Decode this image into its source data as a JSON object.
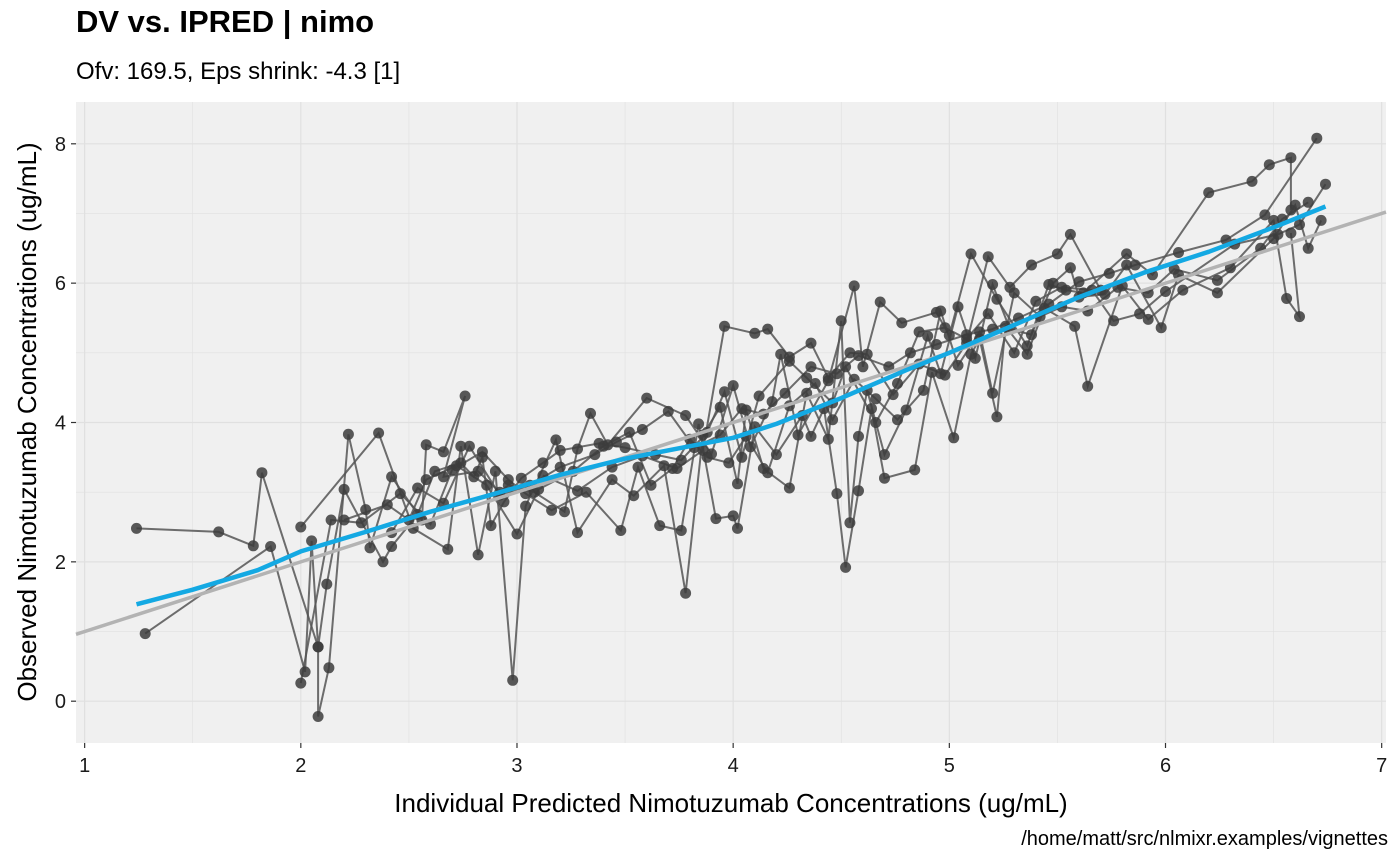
{
  "title": "DV vs. IPRED | nimo",
  "subtitle": "Ofv: 169.5, Eps shrink: -4.3 [1]",
  "caption": "/home/matt/src/nlmixr.examples/vignettes",
  "chart_data": {
    "type": "scatter",
    "title": "DV vs. IPRED | nimo",
    "subtitle": "Ofv: 169.5, Eps shrink: -4.3 [1]",
    "xlabel": "Individual Predicted Nimotuzumab Concentrations (ug/mL)",
    "ylabel": "Observed Nimotuzumab Concentrations (ug/mL)",
    "xlim": [
      0.96,
      7.02
    ],
    "ylim": [
      -0.6,
      8.6
    ],
    "x_ticks": [
      "1",
      "2",
      "3",
      "4",
      "5",
      "6",
      "7"
    ],
    "y_ticks": [
      "0",
      "2",
      "4",
      "6",
      "8"
    ],
    "grid": true,
    "colors": {
      "panel": "#f0f0f0",
      "grid": "#e0e0e0",
      "points": "#3c3c3c",
      "lines": "#555555",
      "smooth": "#14a9e3",
      "identity": "#b3b3b3"
    },
    "identity_line": {
      "slope": 1,
      "intercept": 0
    },
    "smooth_line": [
      [
        1.24,
        1.39
      ],
      [
        1.5,
        1.6
      ],
      [
        1.8,
        1.88
      ],
      [
        2.0,
        2.15
      ],
      [
        2.3,
        2.43
      ],
      [
        2.6,
        2.72
      ],
      [
        2.9,
        2.98
      ],
      [
        3.2,
        3.25
      ],
      [
        3.5,
        3.48
      ],
      [
        3.8,
        3.66
      ],
      [
        4.0,
        3.78
      ],
      [
        4.2,
        3.98
      ],
      [
        4.5,
        4.35
      ],
      [
        4.8,
        4.75
      ],
      [
        5.0,
        5.0
      ],
      [
        5.3,
        5.4
      ],
      [
        5.6,
        5.8
      ],
      [
        5.9,
        6.15
      ],
      [
        6.2,
        6.45
      ],
      [
        6.5,
        6.8
      ],
      [
        6.74,
        7.1
      ]
    ],
    "series": [
      {
        "points": [
          [
            1.24,
            2.48
          ],
          [
            1.62,
            2.43
          ],
          [
            1.78,
            2.23
          ],
          [
            1.82,
            3.28
          ],
          [
            2.08,
            0.78
          ],
          [
            2.08,
            -0.22
          ],
          [
            2.13,
            0.48
          ],
          [
            2.22,
            3.83
          ],
          [
            2.3,
            2.75
          ],
          [
            2.32,
            2.2
          ],
          [
            2.42,
            3.22
          ],
          [
            2.56,
            2.6
          ],
          [
            2.58,
            3.68
          ],
          [
            2.66,
            3.58
          ],
          [
            2.76,
            4.38
          ],
          [
            2.66,
            3.22
          ],
          [
            2.82,
            3.3
          ],
          [
            2.92,
            3.0
          ],
          [
            2.96,
            3.1
          ],
          [
            3.08,
            3.0
          ],
          [
            3.22,
            2.72
          ],
          [
            3.28,
            3.62
          ],
          [
            3.34,
            4.13
          ],
          [
            3.42,
            3.68
          ],
          [
            3.6,
            4.35
          ],
          [
            3.78,
            4.1
          ],
          [
            3.9,
            3.55
          ],
          [
            4.0,
            4.53
          ],
          [
            4.08,
            3.65
          ],
          [
            4.18,
            4.3
          ],
          [
            4.22,
            4.98
          ],
          [
            4.3,
            3.82
          ],
          [
            4.44,
            4.6
          ],
          [
            4.56,
            5.96
          ],
          [
            4.6,
            4.8
          ],
          [
            4.68,
            5.73
          ],
          [
            4.78,
            5.43
          ],
          [
            4.94,
            5.58
          ],
          [
            5.0,
            5.25
          ],
          [
            5.1,
            6.42
          ],
          [
            5.22,
            5.77
          ],
          [
            5.36,
            5.1
          ],
          [
            5.46,
            5.98
          ],
          [
            5.54,
            5.9
          ],
          [
            5.62,
            5.86
          ],
          [
            5.82,
            6.42
          ],
          [
            5.94,
            6.12
          ],
          [
            6.2,
            7.3
          ],
          [
            6.4,
            7.46
          ],
          [
            6.48,
            7.7
          ],
          [
            6.58,
            7.8
          ],
          [
            6.58,
            7.05
          ]
        ]
      },
      {
        "points": [
          [
            1.28,
            0.97
          ],
          [
            1.86,
            2.22
          ],
          [
            2.02,
            0.42
          ],
          [
            2.05,
            2.3
          ],
          [
            2.08,
            0.78
          ],
          [
            2.12,
            1.68
          ],
          [
            2.2,
            3.04
          ],
          [
            2.38,
            2.0
          ],
          [
            2.42,
            2.22
          ],
          [
            2.54,
            2.68
          ],
          [
            2.62,
            3.3
          ],
          [
            2.74,
            3.42
          ],
          [
            2.8,
            3.22
          ],
          [
            2.84,
            3.5
          ],
          [
            2.88,
            2.52
          ],
          [
            2.94,
            2.86
          ],
          [
            3.02,
            3.2
          ],
          [
            3.12,
            3.42
          ],
          [
            3.2,
            3.6
          ],
          [
            3.38,
            3.7
          ],
          [
            3.5,
            3.64
          ],
          [
            3.64,
            3.54
          ],
          [
            3.76,
            3.46
          ],
          [
            3.88,
            3.86
          ],
          [
            3.96,
            4.44
          ],
          [
            4.04,
            3.5
          ],
          [
            4.12,
            4.38
          ],
          [
            4.26,
            4.88
          ],
          [
            4.34,
            4.64
          ],
          [
            4.46,
            4.28
          ],
          [
            4.52,
            4.8
          ],
          [
            4.66,
            4.0
          ],
          [
            4.76,
            4.56
          ],
          [
            4.86,
            5.3
          ],
          [
            4.98,
            5.36
          ],
          [
            5.08,
            5.2
          ],
          [
            5.18,
            5.56
          ],
          [
            5.3,
            5.0
          ],
          [
            5.4,
            5.74
          ],
          [
            5.52,
            5.94
          ],
          [
            5.66,
            5.9
          ],
          [
            5.76,
            5.46
          ],
          [
            5.88,
            5.56
          ],
          [
            6.0,
            5.88
          ],
          [
            6.32,
            6.56
          ],
          [
            6.52,
            6.7
          ],
          [
            6.62,
            6.84
          ],
          [
            6.74,
            7.42
          ]
        ]
      },
      {
        "points": [
          [
            2.0,
            2.5
          ],
          [
            2.36,
            3.85
          ],
          [
            2.52,
            2.48
          ],
          [
            2.68,
            2.18
          ],
          [
            2.74,
            3.66
          ],
          [
            2.82,
            2.1
          ],
          [
            2.9,
            3.3
          ],
          [
            2.98,
            0.3
          ],
          [
            3.04,
            2.8
          ],
          [
            3.18,
            3.75
          ],
          [
            3.28,
            2.42
          ],
          [
            3.44,
            3.18
          ],
          [
            3.54,
            2.95
          ],
          [
            3.68,
            3.38
          ],
          [
            3.78,
            1.55
          ],
          [
            3.86,
            3.82
          ],
          [
            3.94,
            4.22
          ],
          [
            4.02,
            3.12
          ],
          [
            4.06,
            4.18
          ],
          [
            4.14,
            3.34
          ],
          [
            4.26,
            3.06
          ],
          [
            4.34,
            4.42
          ],
          [
            4.44,
            3.76
          ],
          [
            4.5,
            5.46
          ],
          [
            4.54,
            2.56
          ],
          [
            4.58,
            3.8
          ],
          [
            4.62,
            4.46
          ],
          [
            4.7,
            3.54
          ],
          [
            4.8,
            4.18
          ],
          [
            4.9,
            5.24
          ],
          [
            4.96,
            4.7
          ],
          [
            5.04,
            5.66
          ],
          [
            5.12,
            4.92
          ],
          [
            5.2,
            5.98
          ],
          [
            5.28,
            5.34
          ],
          [
            5.38,
            5.26
          ],
          [
            5.48,
            6.0
          ],
          [
            5.56,
            6.22
          ],
          [
            5.6,
            5.8
          ],
          [
            5.72,
            5.84
          ],
          [
            5.82,
            6.26
          ],
          [
            5.98,
            5.36
          ],
          [
            6.06,
            6.12
          ],
          [
            6.24,
            5.86
          ],
          [
            6.5,
            6.64
          ],
          [
            6.6,
            7.12
          ],
          [
            6.66,
            6.5
          ],
          [
            6.72,
            6.9
          ]
        ]
      },
      {
        "points": [
          [
            2.0,
            0.26
          ],
          [
            2.14,
            2.6
          ],
          [
            2.28,
            2.56
          ],
          [
            2.46,
            2.98
          ],
          [
            2.6,
            2.54
          ],
          [
            2.7,
            3.32
          ],
          [
            2.84,
            3.58
          ],
          [
            2.96,
            3.18
          ],
          [
            3.04,
            2.98
          ],
          [
            3.16,
            2.74
          ],
          [
            3.32,
            3.0
          ],
          [
            3.48,
            2.45
          ],
          [
            3.56,
            3.36
          ],
          [
            3.66,
            2.52
          ],
          [
            3.76,
            2.45
          ],
          [
            3.84,
            3.98
          ],
          [
            3.92,
            2.62
          ],
          [
            4.0,
            2.66
          ],
          [
            4.02,
            2.48
          ],
          [
            4.1,
            3.94
          ],
          [
            4.2,
            3.54
          ],
          [
            4.32,
            4.1
          ],
          [
            4.36,
            3.8
          ],
          [
            4.42,
            4.2
          ],
          [
            4.48,
            2.98
          ],
          [
            4.52,
            1.92
          ],
          [
            4.58,
            3.02
          ],
          [
            4.64,
            4.2
          ],
          [
            4.7,
            3.2
          ],
          [
            4.84,
            3.32
          ],
          [
            4.92,
            4.72
          ],
          [
            5.02,
            3.78
          ],
          [
            5.1,
            4.98
          ],
          [
            5.14,
            5.2
          ],
          [
            5.22,
            4.08
          ],
          [
            5.26,
            5.38
          ],
          [
            5.36,
            4.98
          ],
          [
            5.44,
            5.64
          ],
          [
            5.58,
            5.38
          ],
          [
            5.64,
            4.52
          ],
          [
            5.8,
            5.96
          ],
          [
            5.92,
            5.48
          ],
          [
            6.08,
            5.9
          ],
          [
            6.3,
            6.22
          ],
          [
            6.5,
            6.9
          ],
          [
            6.56,
            5.78
          ],
          [
            6.62,
            5.52
          ],
          [
            6.58,
            6.72
          ]
        ]
      },
      {
        "points": [
          [
            2.2,
            2.6
          ],
          [
            2.4,
            2.82
          ],
          [
            2.5,
            2.6
          ],
          [
            2.58,
            3.18
          ],
          [
            2.72,
            3.38
          ],
          [
            2.86,
            3.1
          ],
          [
            3.0,
            2.4
          ],
          [
            3.1,
            3.04
          ],
          [
            3.26,
            3.3
          ],
          [
            3.4,
            3.66
          ],
          [
            3.52,
            3.86
          ],
          [
            3.62,
            3.1
          ],
          [
            3.72,
            3.34
          ],
          [
            3.8,
            3.76
          ],
          [
            3.88,
            3.5
          ],
          [
            3.98,
            3.42
          ],
          [
            4.06,
            3.8
          ],
          [
            4.16,
            3.28
          ],
          [
            4.26,
            4.24
          ],
          [
            4.38,
            4.56
          ],
          [
            4.46,
            4.04
          ],
          [
            4.56,
            4.62
          ],
          [
            4.66,
            4.34
          ],
          [
            4.76,
            4.04
          ],
          [
            4.88,
            4.46
          ],
          [
            4.96,
            5.6
          ],
          [
            5.04,
            4.82
          ],
          [
            5.14,
            5.3
          ],
          [
            5.2,
            4.42
          ],
          [
            5.3,
            5.86
          ],
          [
            5.42,
            5.52
          ],
          [
            5.52,
            5.66
          ],
          [
            5.64,
            5.6
          ],
          [
            5.78,
            5.94
          ],
          [
            5.92,
            5.86
          ],
          [
            6.04,
            6.2
          ],
          [
            6.24,
            6.04
          ],
          [
            6.44,
            6.5
          ],
          [
            6.54,
            6.92
          ],
          [
            6.66,
            7.16
          ]
        ]
      },
      {
        "points": [
          [
            2.42,
            2.42
          ],
          [
            2.54,
            3.06
          ],
          [
            2.66,
            2.84
          ],
          [
            2.78,
            3.66
          ],
          [
            2.92,
            2.96
          ],
          [
            3.06,
            3.1
          ],
          [
            3.2,
            3.36
          ],
          [
            3.36,
            3.54
          ],
          [
            3.46,
            3.72
          ],
          [
            3.58,
            3.9
          ],
          [
            3.7,
            4.16
          ],
          [
            3.82,
            3.64
          ],
          [
            3.94,
            3.82
          ],
          [
            4.04,
            4.2
          ],
          [
            4.14,
            4.12
          ],
          [
            4.24,
            4.42
          ],
          [
            4.36,
            4.8
          ],
          [
            4.48,
            4.7
          ],
          [
            4.58,
            4.96
          ],
          [
            4.72,
            4.8
          ],
          [
            4.82,
            5.0
          ],
          [
            4.94,
            5.12
          ],
          [
            5.08,
            5.26
          ],
          [
            5.2,
            5.34
          ],
          [
            5.32,
            5.5
          ],
          [
            5.46,
            5.7
          ],
          [
            5.6,
            6.02
          ],
          [
            5.74,
            6.14
          ],
          [
            5.86,
            6.26
          ],
          [
            6.06,
            6.44
          ],
          [
            6.28,
            6.62
          ],
          [
            6.46,
            6.98
          ],
          [
            6.7,
            8.08
          ]
        ]
      },
      {
        "points": [
          [
            3.12,
            3.24
          ],
          [
            3.28,
            3.02
          ],
          [
            3.44,
            3.36
          ],
          [
            3.58,
            3.52
          ],
          [
            3.74,
            3.34
          ],
          [
            3.86,
            3.6
          ],
          [
            3.96,
            5.38
          ],
          [
            4.1,
            5.28
          ],
          [
            4.16,
            5.34
          ],
          [
            4.26,
            4.94
          ],
          [
            4.36,
            5.14
          ],
          [
            4.44,
            4.64
          ],
          [
            4.54,
            5.0
          ],
          [
            4.62,
            4.98
          ],
          [
            4.74,
            4.4
          ],
          [
            4.86,
            4.84
          ],
          [
            4.98,
            4.68
          ],
          [
            5.08,
            5.14
          ],
          [
            5.18,
            6.38
          ],
          [
            5.28,
            5.94
          ],
          [
            5.38,
            6.26
          ],
          [
            5.5,
            6.42
          ],
          [
            5.56,
            6.7
          ],
          [
            5.7,
            5.9
          ]
        ]
      }
    ]
  }
}
